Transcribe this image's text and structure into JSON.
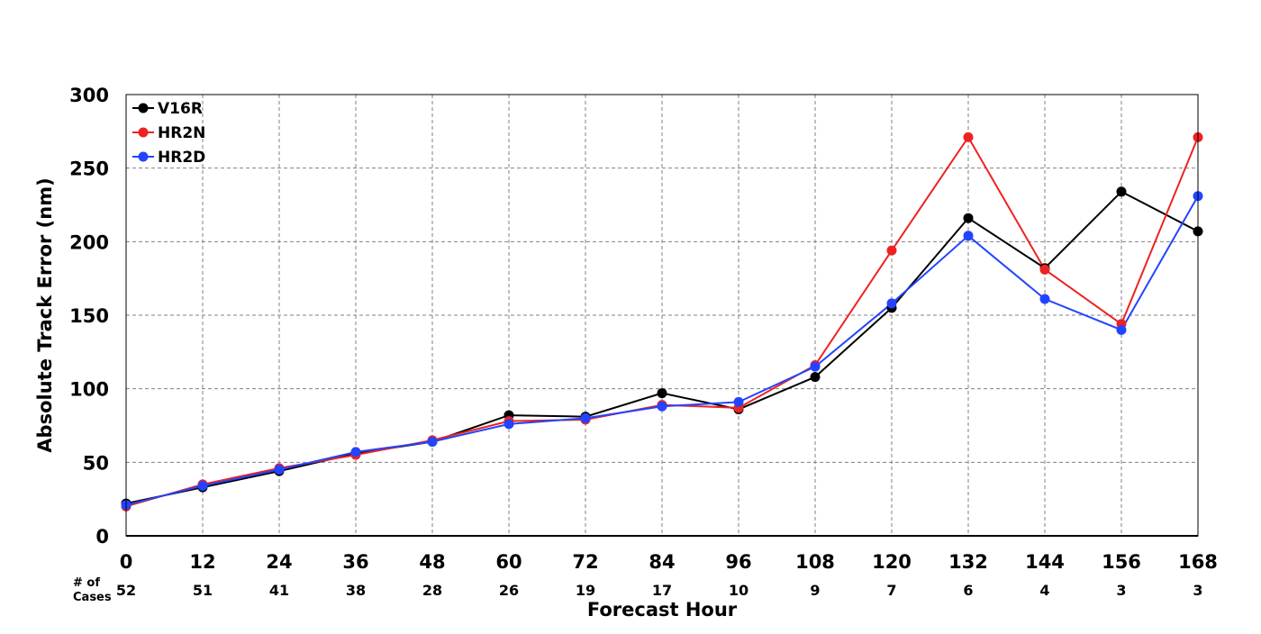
{
  "chart_data": {
    "type": "line",
    "title": "",
    "xlabel": "Forecast Hour",
    "ylabel": "Absolute Track Error (nm)",
    "x": [
      0,
      12,
      24,
      36,
      48,
      60,
      72,
      84,
      96,
      108,
      120,
      132,
      144,
      156,
      168
    ],
    "xlim": [
      0,
      168
    ],
    "ylim": [
      0,
      300
    ],
    "x_ticks": [
      "0",
      "12",
      "24",
      "36",
      "48",
      "60",
      "72",
      "84",
      "96",
      "108",
      "120",
      "132",
      "144",
      "156",
      "168"
    ],
    "y_ticks": [
      "0",
      "50",
      "100",
      "150",
      "200",
      "250",
      "300"
    ],
    "grid": true,
    "legend_position": "top-left",
    "series": [
      {
        "name": "V16R",
        "color": "#000000",
        "values": [
          22,
          33,
          44,
          56,
          64,
          82,
          81,
          97,
          86,
          108,
          155,
          216,
          182,
          234,
          207
        ]
      },
      {
        "name": "HR2N",
        "color": "#ee2222",
        "values": [
          20,
          35,
          46,
          55,
          65,
          78,
          79,
          89,
          87,
          116,
          194,
          271,
          181,
          144,
          271
        ]
      },
      {
        "name": "HR2D",
        "color": "#2244ff",
        "values": [
          21,
          34,
          45,
          57,
          64,
          76,
          80,
          88,
          91,
          115,
          158,
          204,
          161,
          140,
          231
        ]
      }
    ],
    "cases_header": "# of\nCases",
    "cases_header_lines": [
      "# of",
      "Cases"
    ],
    "cases": [
      "52",
      "51",
      "41",
      "38",
      "28",
      "26",
      "19",
      "17",
      "10",
      "9",
      "7",
      "6",
      "4",
      "3",
      "3"
    ]
  }
}
